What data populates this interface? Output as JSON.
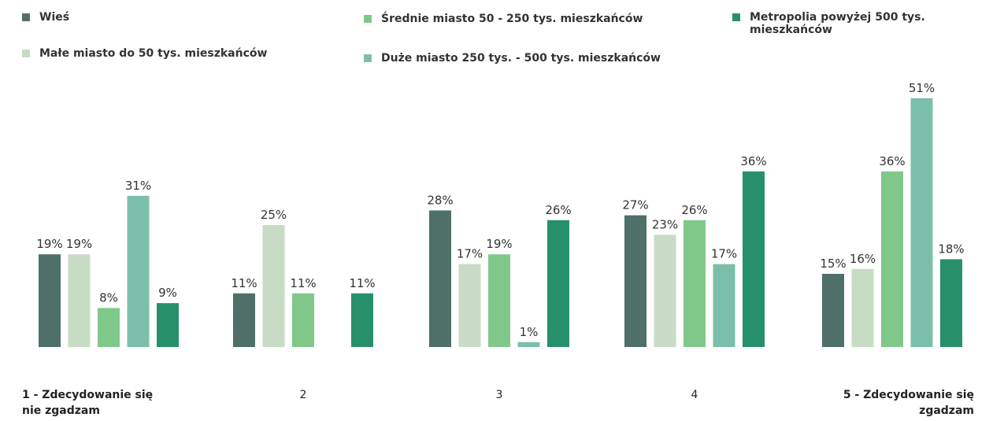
{
  "chart_data": {
    "type": "bar",
    "categories": [
      "1 - Zdecydowanie się nie zgadzam",
      "2",
      "3",
      "4",
      "5 - Zdecydowanie się zgadzam"
    ],
    "series": [
      {
        "name": "Wieś",
        "color": "#4e7068",
        "values": [
          19,
          11,
          28,
          27,
          15
        ],
        "value_labels": [
          "19%",
          "11%",
          "28%",
          "27%",
          "15%"
        ]
      },
      {
        "name": "Małe miasto do 50 tys. mieszkańców",
        "color": "#c8dbc5",
        "values": [
          19,
          25,
          17,
          23,
          16
        ],
        "value_labels": [
          "19%",
          "25%",
          "17%",
          "23%",
          "16%"
        ]
      },
      {
        "name": "Średnie miasto 50 - 250 tys. mieszkańców",
        "color": "#7fc88a",
        "values": [
          8,
          11,
          19,
          26,
          36
        ],
        "value_labels": [
          "8%",
          "11%",
          "19%",
          "26%",
          "36%"
        ]
      },
      {
        "name": "Duże miasto 250 tys. - 500 tys. mieszkańców",
        "color": "#7bbfaa",
        "values": [
          31,
          null,
          1,
          17,
          51
        ],
        "value_labels": [
          "31%",
          null,
          "1%",
          "17%",
          "51%"
        ]
      },
      {
        "name": "Metropolia powyżej 500 tys. mieszkańców",
        "color": "#27906b",
        "values": [
          9,
          11,
          26,
          36,
          18
        ],
        "value_labels": [
          "9%",
          "11%",
          "26%",
          "36%",
          "18%"
        ]
      }
    ]
  }
}
